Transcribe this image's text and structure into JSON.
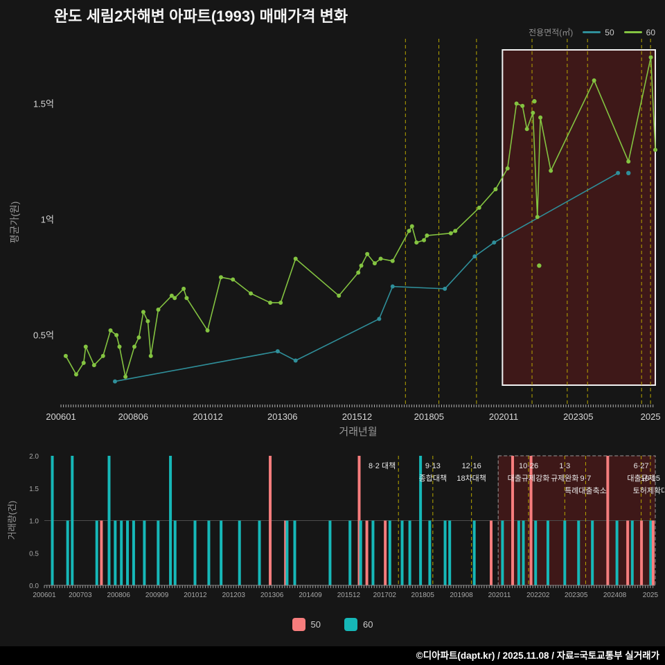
{
  "title": "완도 세림2차해변 아파트(1993) 매매가격 변화",
  "legend": {
    "title": "전용면적(㎡)",
    "items": [
      "50",
      "60"
    ]
  },
  "bar_legend": [
    "50",
    "60"
  ],
  "footer": "©디아파트(dapt.kr) / 2025.11.08 / 자료=국토교통부 실거래가",
  "colors": {
    "page_bg": "#161616",
    "line_50": "#2f8f9a",
    "line_60": "#84c441",
    "bar_50": "#f67d7d",
    "bar_60": "#16b8b8",
    "policy_line": "#b8a700",
    "highlight_fill": "rgba(150,30,30,0.32)",
    "highlight_stroke_top": "#f2f2f2",
    "highlight_stroke_bottom": "#999999",
    "axis_text": "#d8d8d8",
    "axis_text_dim": "#a8a8a8",
    "axis_title": "#9a9a9a",
    "grid": "#4c4c4c",
    "annotation_text": "#e8e8e8"
  },
  "policy_events": [
    {
      "x": 2017.58,
      "anchor": "end",
      "lines": [
        {
          "t": "8·2 대책",
          "r": 1
        }
      ]
    },
    {
      "x": 2018.7,
      "lines": [
        {
          "t": "9·13",
          "r": 1
        },
        {
          "t": "종합대책",
          "r": 2
        }
      ]
    },
    {
      "x": 2019.96,
      "lines": [
        {
          "t": "12·16",
          "r": 1
        },
        {
          "t": "18차대책",
          "r": 2
        }
      ]
    },
    {
      "x": 2021.82,
      "lines": [
        {
          "t": "10·26",
          "r": 1
        },
        {
          "t": "대출규제강화",
          "r": 2
        }
      ]
    },
    {
      "x": 2023.0,
      "lines": [
        {
          "t": "1·3",
          "r": 1
        },
        {
          "t": "규제완화",
          "r": 2
        }
      ]
    },
    {
      "x": 2023.68,
      "lines": [
        {
          "t": "9·7",
          "r": 2
        },
        {
          "t": "특례대출축소",
          "r": 3
        }
      ]
    },
    {
      "x": 2025.49,
      "lines": [
        {
          "t": "6·27",
          "r": 1
        },
        {
          "t": "대출규제",
          "r": 2
        }
      ]
    },
    {
      "x": 2025.79,
      "lines": [
        {
          "t": "10·15",
          "r": 2
        },
        {
          "t": "토허제확대",
          "r": 3
        }
      ]
    }
  ],
  "chart_data": [
    {
      "type": "line",
      "title": "완도 세림2차해변 아파트(1993) 매매가격 변화",
      "xlabel": "거래년월",
      "ylabel": "평균가(원)",
      "xlim": [
        2006.04,
        2025.95
      ],
      "ylim": [
        0.2,
        1.75
      ],
      "legend_position": "top-right",
      "grid": false,
      "x_ticks": [
        {
          "v": 2006.04,
          "label": "200601"
        },
        {
          "v": 2008.46,
          "label": "200806"
        },
        {
          "v": 2010.96,
          "label": "201012"
        },
        {
          "v": 2013.46,
          "label": "201306"
        },
        {
          "v": 2015.96,
          "label": "201512"
        },
        {
          "v": 2018.37,
          "label": "201805"
        },
        {
          "v": 2020.87,
          "label": "202011"
        },
        {
          "v": 2023.37,
          "label": "202305"
        },
        {
          "v": 2025.79,
          "label": "2025"
        }
      ],
      "y_ticks": [
        {
          "v": 0.5,
          "label": "0.5억"
        },
        {
          "v": 1.0,
          "label": "1억"
        },
        {
          "v": 1.5,
          "label": "1.5억"
        }
      ],
      "highlight_range": [
        2020.83,
        2025.95
      ],
      "series": [
        {
          "name": "50",
          "points": [
            [
              2007.85,
              0.3
            ],
            [
              2013.3,
              0.43
            ],
            [
              2013.9,
              0.39
            ],
            [
              2016.7,
              0.57
            ],
            [
              2017.15,
              0.71
            ],
            [
              2018.9,
              0.7
            ],
            [
              2019.9,
              0.84
            ],
            [
              2020.55,
              0.9
            ],
            [
              2024.7,
              1.2
            ]
          ],
          "scatter": [
            [
              2025.05,
              1.2
            ]
          ]
        },
        {
          "name": "60",
          "points": [
            [
              2006.2,
              0.41
            ],
            [
              2006.55,
              0.33
            ],
            [
              2006.8,
              0.38
            ],
            [
              2006.87,
              0.45
            ],
            [
              2007.15,
              0.37
            ],
            [
              2007.45,
              0.41
            ],
            [
              2007.7,
              0.52
            ],
            [
              2007.9,
              0.5
            ],
            [
              2008.0,
              0.45
            ],
            [
              2008.2,
              0.32
            ],
            [
              2008.5,
              0.45
            ],
            [
              2008.65,
              0.49
            ],
            [
              2008.8,
              0.6
            ],
            [
              2008.95,
              0.56
            ],
            [
              2009.05,
              0.41
            ],
            [
              2009.3,
              0.61
            ],
            [
              2009.75,
              0.67
            ],
            [
              2009.85,
              0.66
            ],
            [
              2010.15,
              0.7
            ],
            [
              2010.25,
              0.66
            ],
            [
              2010.95,
              0.52
            ],
            [
              2011.4,
              0.75
            ],
            [
              2011.8,
              0.74
            ],
            [
              2012.4,
              0.68
            ],
            [
              2013.05,
              0.64
            ],
            [
              2013.4,
              0.64
            ],
            [
              2013.9,
              0.83
            ],
            [
              2015.35,
              0.67
            ],
            [
              2016.0,
              0.77
            ],
            [
              2016.1,
              0.8
            ],
            [
              2016.3,
              0.85
            ],
            [
              2016.55,
              0.81
            ],
            [
              2016.75,
              0.83
            ],
            [
              2017.15,
              0.82
            ],
            [
              2017.7,
              0.95
            ],
            [
              2017.8,
              0.97
            ],
            [
              2017.95,
              0.9
            ],
            [
              2018.2,
              0.91
            ],
            [
              2018.3,
              0.93
            ],
            [
              2019.1,
              0.94
            ],
            [
              2019.25,
              0.95
            ],
            [
              2020.05,
              1.05
            ],
            [
              2020.6,
              1.13
            ],
            [
              2021.0,
              1.22
            ],
            [
              2021.3,
              1.5
            ],
            [
              2021.5,
              1.49
            ],
            [
              2021.65,
              1.39
            ],
            [
              2021.85,
              1.46
            ],
            [
              2022.0,
              1.01
            ],
            [
              2022.1,
              1.44
            ],
            [
              2022.45,
              1.21
            ],
            [
              2023.9,
              1.6
            ],
            [
              2025.05,
              1.25
            ],
            [
              2025.8,
              1.7
            ],
            [
              2025.95,
              1.3
            ]
          ],
          "scatter": [
            [
              2021.9,
              1.51
            ],
            [
              2022.06,
              0.8
            ]
          ]
        }
      ]
    },
    {
      "type": "bar",
      "xlabel": "",
      "ylabel": "거래량(건)",
      "xlim": [
        2006.04,
        2025.95
      ],
      "ylim": [
        0,
        2
      ],
      "grid": "y-at-1.0",
      "legend_position": "bottom-center",
      "x_ticks": [
        {
          "v": 2006.04,
          "label": "200601"
        },
        {
          "v": 2007.21,
          "label": "200703"
        },
        {
          "v": 2008.46,
          "label": "200806"
        },
        {
          "v": 2009.71,
          "label": "200909"
        },
        {
          "v": 2010.96,
          "label": "201012"
        },
        {
          "v": 2012.21,
          "label": "201203"
        },
        {
          "v": 2013.46,
          "label": "201306"
        },
        {
          "v": 2014.71,
          "label": "201409"
        },
        {
          "v": 2015.96,
          "label": "201512"
        },
        {
          "v": 2017.13,
          "label": "201702"
        },
        {
          "v": 2018.37,
          "label": "201805"
        },
        {
          "v": 2019.63,
          "label": "201908"
        },
        {
          "v": 2020.87,
          "label": "202011"
        },
        {
          "v": 2022.13,
          "label": "202202"
        },
        {
          "v": 2023.37,
          "label": "202305"
        },
        {
          "v": 2024.63,
          "label": "202408"
        },
        {
          "v": 2025.79,
          "label": "2025"
        }
      ],
      "y_ticks": [
        {
          "v": 0,
          "label": "0.0"
        },
        {
          "v": 0.5,
          "label": "0.5"
        },
        {
          "v": 1,
          "label": "1.0"
        },
        {
          "v": 1.5,
          "label": "1.5"
        },
        {
          "v": 2,
          "label": "2.0"
        }
      ],
      "highlight_range": [
        2020.83,
        2025.95
      ],
      "bars": [
        {
          "m": 2006.3,
          "s": "60",
          "v": 2
        },
        {
          "m": 2006.8,
          "s": "60",
          "v": 1
        },
        {
          "m": 2006.95,
          "s": "60",
          "v": 2
        },
        {
          "m": 2007.75,
          "s": "60",
          "v": 1
        },
        {
          "m": 2007.9,
          "s": "50",
          "v": 1
        },
        {
          "m": 2008.15,
          "s": "60",
          "v": 2
        },
        {
          "m": 2008.35,
          "s": "60",
          "v": 1
        },
        {
          "m": 2008.55,
          "s": "60",
          "v": 1
        },
        {
          "m": 2008.75,
          "s": "60",
          "v": 1
        },
        {
          "m": 2008.95,
          "s": "60",
          "v": 1
        },
        {
          "m": 2009.3,
          "s": "60",
          "v": 1
        },
        {
          "m": 2009.75,
          "s": "60",
          "v": 1
        },
        {
          "m": 2010.15,
          "s": "60",
          "v": 2
        },
        {
          "m": 2010.3,
          "s": "60",
          "v": 1
        },
        {
          "m": 2010.95,
          "s": "60",
          "v": 1
        },
        {
          "m": 2011.4,
          "s": "60",
          "v": 1
        },
        {
          "m": 2011.8,
          "s": "60",
          "v": 1
        },
        {
          "m": 2012.4,
          "s": "60",
          "v": 1
        },
        {
          "m": 2013.05,
          "s": "60",
          "v": 1
        },
        {
          "m": 2013.4,
          "s": "50",
          "v": 2
        },
        {
          "m": 2013.9,
          "s": "50",
          "v": 1
        },
        {
          "m": 2013.95,
          "s": "60",
          "v": 1
        },
        {
          "m": 2014.2,
          "s": "60",
          "v": 1
        },
        {
          "m": 2015.35,
          "s": "60",
          "v": 1
        },
        {
          "m": 2016.0,
          "s": "60",
          "v": 1
        },
        {
          "m": 2016.3,
          "s": "50",
          "v": 2
        },
        {
          "m": 2016.35,
          "s": "60",
          "v": 1
        },
        {
          "m": 2016.55,
          "s": "50",
          "v": 1
        },
        {
          "m": 2016.75,
          "s": "60",
          "v": 1
        },
        {
          "m": 2017.15,
          "s": "50",
          "v": 1
        },
        {
          "m": 2017.3,
          "s": "60",
          "v": 1
        },
        {
          "m": 2017.7,
          "s": "60",
          "v": 1
        },
        {
          "m": 2017.95,
          "s": "60",
          "v": 1
        },
        {
          "m": 2018.3,
          "s": "60",
          "v": 2
        },
        {
          "m": 2018.6,
          "s": "60",
          "v": 1
        },
        {
          "m": 2019.1,
          "s": "60",
          "v": 1
        },
        {
          "m": 2019.25,
          "s": "60",
          "v": 1
        },
        {
          "m": 2020.05,
          "s": "60",
          "v": 1
        },
        {
          "m": 2020.6,
          "s": "50",
          "v": 1
        },
        {
          "m": 2020.97,
          "s": "60",
          "v": 1
        },
        {
          "m": 2021.3,
          "s": "50",
          "v": 2
        },
        {
          "m": 2021.5,
          "s": "60",
          "v": 1
        },
        {
          "m": 2021.65,
          "s": "60",
          "v": 1
        },
        {
          "m": 2021.9,
          "s": "50",
          "v": 2
        },
        {
          "m": 2022.05,
          "s": "60",
          "v": 1
        },
        {
          "m": 2022.45,
          "s": "60",
          "v": 1
        },
        {
          "m": 2023.0,
          "s": "60",
          "v": 1
        },
        {
          "m": 2023.45,
          "s": "60",
          "v": 1
        },
        {
          "m": 2023.9,
          "s": "60",
          "v": 1
        },
        {
          "m": 2024.4,
          "s": "50",
          "v": 2
        },
        {
          "m": 2024.7,
          "s": "60",
          "v": 1
        },
        {
          "m": 2025.05,
          "s": "50",
          "v": 1
        },
        {
          "m": 2025.2,
          "s": "60",
          "v": 1
        },
        {
          "m": 2025.5,
          "s": "50",
          "v": 1
        },
        {
          "m": 2025.8,
          "s": "60",
          "v": 1
        },
        {
          "m": 2025.88,
          "s": "50",
          "v": 1
        }
      ]
    }
  ]
}
